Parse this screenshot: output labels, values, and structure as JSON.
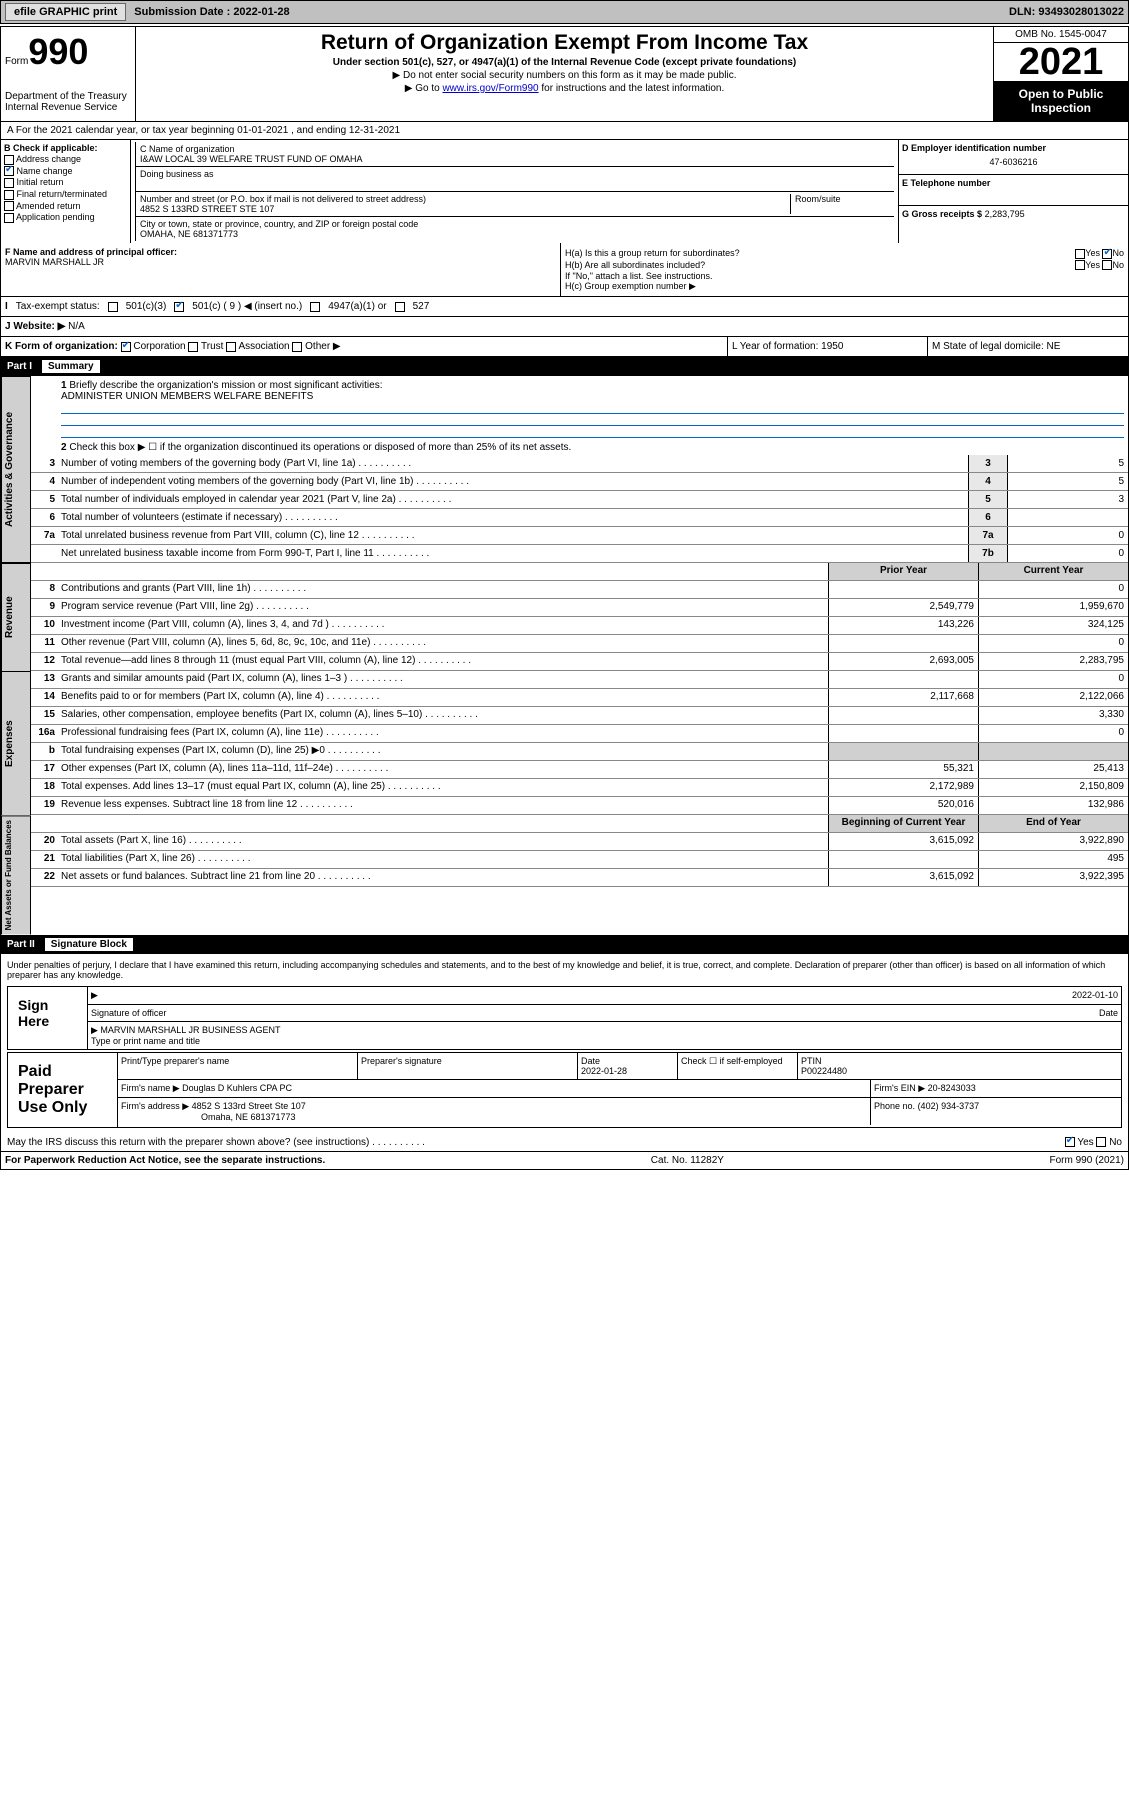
{
  "topbar": {
    "efile": "efile GRAPHIC print",
    "submission": "Submission Date : 2022-01-28",
    "dln": "DLN: 93493028013022"
  },
  "header": {
    "form_label": "Form",
    "form_num": "990",
    "dept": "Department of the Treasury\nInternal Revenue Service",
    "title": "Return of Organization Exempt From Income Tax",
    "sub": "Under section 501(c), 527, or 4947(a)(1) of the Internal Revenue Code (except private foundations)",
    "note1": "▶ Do not enter social security numbers on this form as it may be made public.",
    "note2_pre": "▶ Go to ",
    "note2_link": "www.irs.gov/Form990",
    "note2_post": " for instructions and the latest information.",
    "omb": "OMB No. 1545-0047",
    "year": "2021",
    "open": "Open to Public Inspection"
  },
  "A": {
    "line": "A For the 2021 calendar year, or tax year beginning 01-01-2021   , and ending 12-31-2021"
  },
  "B": {
    "label": "B Check if applicable:",
    "items": [
      "Address change",
      "Name change",
      "Initial return",
      "Final return/terminated",
      "Amended return",
      "Application pending"
    ],
    "checked_idx": 1
  },
  "C": {
    "name_label": "C Name of organization",
    "name": "I&AW LOCAL 39 WELFARE TRUST FUND OF OMAHA",
    "dba_label": "Doing business as",
    "addr_label": "Number and street (or P.O. box if mail is not delivered to street address)",
    "room_label": "Room/suite",
    "addr": "4852 S 133RD STREET STE 107",
    "city_label": "City or town, state or province, country, and ZIP or foreign postal code",
    "city": "OMAHA, NE  681371773"
  },
  "D": {
    "label": "D Employer identification number",
    "val": "47-6036216"
  },
  "E": {
    "label": "E Telephone number",
    "val": ""
  },
  "G": {
    "label": "G Gross receipts $",
    "val": "2,283,795"
  },
  "F": {
    "label": "F Name and address of principal officer:",
    "name": "MARVIN MARSHALL JR"
  },
  "H": {
    "a": "H(a)  Is this a group return for subordinates?",
    "a_yes": "Yes",
    "a_no": "No",
    "b": "H(b)  Are all subordinates included?",
    "b_note": "If \"No,\" attach a list. See instructions.",
    "c": "H(c)  Group exemption number ▶"
  },
  "I": {
    "label": "Tax-exempt status:",
    "o1": "501(c)(3)",
    "o2": "501(c) ( 9 ) ◀ (insert no.)",
    "o3": "4947(a)(1) or",
    "o4": "527"
  },
  "J": {
    "label": "Website: ▶",
    "val": "N/A"
  },
  "K": {
    "label": "K Form of organization:",
    "opts": [
      "Corporation",
      "Trust",
      "Association",
      "Other ▶"
    ],
    "L": "L Year of formation: 1950",
    "M": "M State of legal domicile: NE"
  },
  "part1": {
    "label": "Part I",
    "title": "Summary"
  },
  "summary_top": {
    "l1": "Briefly describe the organization's mission or most significant activities:",
    "l1v": "ADMINISTER UNION MEMBERS WELFARE BENEFITS",
    "l2": "Check this box ▶ ☐  if the organization discontinued its operations or disposed of more than 25% of its net assets."
  },
  "gov_lines": [
    {
      "n": "3",
      "d": "Number of voting members of the governing body (Part VI, line 1a)",
      "b": "3",
      "v": "5"
    },
    {
      "n": "4",
      "d": "Number of independent voting members of the governing body (Part VI, line 1b)",
      "b": "4",
      "v": "5"
    },
    {
      "n": "5",
      "d": "Total number of individuals employed in calendar year 2021 (Part V, line 2a)",
      "b": "5",
      "v": "3"
    },
    {
      "n": "6",
      "d": "Total number of volunteers (estimate if necessary)",
      "b": "6",
      "v": ""
    },
    {
      "n": "7a",
      "d": "Total unrelated business revenue from Part VIII, column (C), line 12",
      "b": "7a",
      "v": "0"
    },
    {
      "n": "",
      "d": "Net unrelated business taxable income from Form 990-T, Part I, line 11",
      "b": "7b",
      "v": "0"
    }
  ],
  "tabs": {
    "gov": "Activities & Governance",
    "rev": "Revenue",
    "exp": "Expenses",
    "net": "Net Assets or Fund Balances"
  },
  "col_hdr": {
    "c1": "Prior Year",
    "c2": "Current Year"
  },
  "rev_lines": [
    {
      "n": "8",
      "d": "Contributions and grants (Part VIII, line 1h)",
      "c1": "",
      "c2": "0"
    },
    {
      "n": "9",
      "d": "Program service revenue (Part VIII, line 2g)",
      "c1": "2,549,779",
      "c2": "1,959,670"
    },
    {
      "n": "10",
      "d": "Investment income (Part VIII, column (A), lines 3, 4, and 7d )",
      "c1": "143,226",
      "c2": "324,125"
    },
    {
      "n": "11",
      "d": "Other revenue (Part VIII, column (A), lines 5, 6d, 8c, 9c, 10c, and 11e)",
      "c1": "",
      "c2": "0"
    },
    {
      "n": "12",
      "d": "Total revenue—add lines 8 through 11 (must equal Part VIII, column (A), line 12)",
      "c1": "2,693,005",
      "c2": "2,283,795"
    }
  ],
  "exp_lines": [
    {
      "n": "13",
      "d": "Grants and similar amounts paid (Part IX, column (A), lines 1–3 )",
      "c1": "",
      "c2": "0"
    },
    {
      "n": "14",
      "d": "Benefits paid to or for members (Part IX, column (A), line 4)",
      "c1": "2,117,668",
      "c2": "2,122,066"
    },
    {
      "n": "15",
      "d": "Salaries, other compensation, employee benefits (Part IX, column (A), lines 5–10)",
      "c1": "",
      "c2": "3,330"
    },
    {
      "n": "16a",
      "d": "Professional fundraising fees (Part IX, column (A), line 11e)",
      "c1": "",
      "c2": "0"
    },
    {
      "n": "b",
      "d": "Total fundraising expenses (Part IX, column (D), line 25) ▶0",
      "c1": "",
      "c2": "",
      "shade": true
    },
    {
      "n": "17",
      "d": "Other expenses (Part IX, column (A), lines 11a–11d, 11f–24e)",
      "c1": "55,321",
      "c2": "25,413"
    },
    {
      "n": "18",
      "d": "Total expenses. Add lines 13–17 (must equal Part IX, column (A), line 25)",
      "c1": "2,172,989",
      "c2": "2,150,809"
    },
    {
      "n": "19",
      "d": "Revenue less expenses. Subtract line 18 from line 12",
      "c1": "520,016",
      "c2": "132,986"
    }
  ],
  "net_hdr": {
    "c1": "Beginning of Current Year",
    "c2": "End of Year"
  },
  "net_lines": [
    {
      "n": "20",
      "d": "Total assets (Part X, line 16)",
      "c1": "3,615,092",
      "c2": "3,922,890"
    },
    {
      "n": "21",
      "d": "Total liabilities (Part X, line 26)",
      "c1": "",
      "c2": "495"
    },
    {
      "n": "22",
      "d": "Net assets or fund balances. Subtract line 21 from line 20",
      "c1": "3,615,092",
      "c2": "3,922,395"
    }
  ],
  "part2": {
    "label": "Part II",
    "title": "Signature Block"
  },
  "sig": {
    "penalty": "Under penalties of perjury, I declare that I have examined this return, including accompanying schedules and statements, and to the best of my knowledge and belief, it is true, correct, and complete. Declaration of preparer (other than officer) is based on all information of which preparer has any knowledge.",
    "sign_here": "Sign Here",
    "sig_date": "2022-01-10",
    "sig_officer": "Signature of officer",
    "date": "Date",
    "name_title": "MARVIN MARSHALL JR  BUSINESS AGENT",
    "type_name": "Type or print name and title"
  },
  "paid": {
    "label": "Paid Preparer Use Only",
    "h1": "Print/Type preparer's name",
    "h2": "Preparer's signature",
    "h3": "Date",
    "h3v": "2022-01-28",
    "h4": "Check ☐ if self-employed",
    "h5": "PTIN",
    "h5v": "P00224480",
    "firm_name_l": "Firm's name    ▶",
    "firm_name": "Douglas D Kuhlers CPA PC",
    "firm_ein_l": "Firm's EIN ▶",
    "firm_ein": "20-8243033",
    "firm_addr_l": "Firm's address ▶",
    "firm_addr1": "4852 S 133rd Street Ste 107",
    "firm_addr2": "Omaha, NE  681371773",
    "phone_l": "Phone no.",
    "phone": "(402) 934-3737"
  },
  "footer": {
    "irs_discuss": "May the IRS discuss this return with the preparer shown above? (see instructions)",
    "yes": "Yes",
    "no": "No",
    "paperwork": "For Paperwork Reduction Act Notice, see the separate instructions.",
    "cat": "Cat. No. 11282Y",
    "form": "Form 990 (2021)"
  }
}
